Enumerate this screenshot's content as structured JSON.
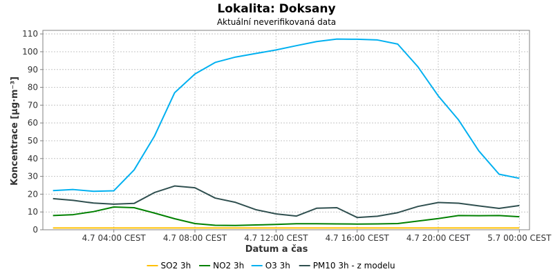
{
  "chart_data": {
    "type": "line",
    "title": "Lokalita: Doksany",
    "subtitle": "Aktuální neverifikovaná data",
    "xlabel": "Datum a čas",
    "ylabel": "Koncentrace [µg·m⁻³]",
    "ylim": [
      0,
      112
    ],
    "yticks": [
      0,
      10,
      20,
      30,
      40,
      50,
      60,
      70,
      80,
      90,
      100,
      110
    ],
    "xlim": [
      0.5,
      24.5
    ],
    "xticks": [
      {
        "label": "4.7 04:00 CEST",
        "hour": 4
      },
      {
        "label": "4.7 08:00 CEST",
        "hour": 8
      },
      {
        "label": "4.7 12:00 CEST",
        "hour": 12
      },
      {
        "label": "4.7 16:00 CEST",
        "hour": 16
      },
      {
        "label": "4.7 20:00 CEST",
        "hour": 20
      },
      {
        "label": "5.7 00:00 CEST",
        "hour": 24
      }
    ],
    "grid": true,
    "legend": "bottom",
    "x": [
      1,
      2,
      3,
      4,
      5,
      6,
      7,
      8,
      9,
      10,
      11,
      12,
      13,
      14,
      15,
      16,
      17,
      18,
      19,
      20,
      21,
      22,
      23,
      24
    ],
    "series": [
      {
        "name": "SO2 3h",
        "color": "#ffc000",
        "values": [
          1,
          1,
          1,
          1,
          1,
          1,
          1,
          1,
          1,
          1,
          1,
          1,
          1,
          1,
          1,
          1,
          1,
          1,
          1,
          1,
          1,
          1,
          1,
          1
        ]
      },
      {
        "name": "NO2 3h",
        "color": "#008000",
        "values": [
          8,
          8.5,
          10.2,
          12.8,
          12.4,
          9.4,
          6.2,
          3.5,
          2.5,
          2.4,
          2.7,
          3.0,
          3.4,
          3.4,
          3.3,
          3.2,
          3.3,
          3.5,
          4.9,
          6.3,
          8.0,
          7.9,
          8.0,
          7.3
        ]
      },
      {
        "name": "O3 3h",
        "color": "#00b0f0",
        "values": [
          22,
          22.6,
          21.6,
          21.9,
          33.6,
          52.5,
          77,
          87.5,
          94,
          97,
          99,
          101,
          103.4,
          105.7,
          107.1,
          107,
          106.6,
          104.3,
          91.5,
          75.2,
          61.7,
          44.3,
          31.2,
          28.9
        ]
      },
      {
        "name": "PM10 3h - z modelu",
        "color": "#2f4f4f",
        "values": [
          17.5,
          16.5,
          15,
          14.4,
          14.8,
          20.9,
          24.6,
          23.6,
          17.8,
          15.4,
          11.3,
          8.9,
          7.7,
          12.1,
          12.4,
          6.9,
          7.6,
          9.6,
          13.1,
          15.3,
          14.9,
          13.4,
          12.0,
          13.6
        ]
      }
    ]
  }
}
